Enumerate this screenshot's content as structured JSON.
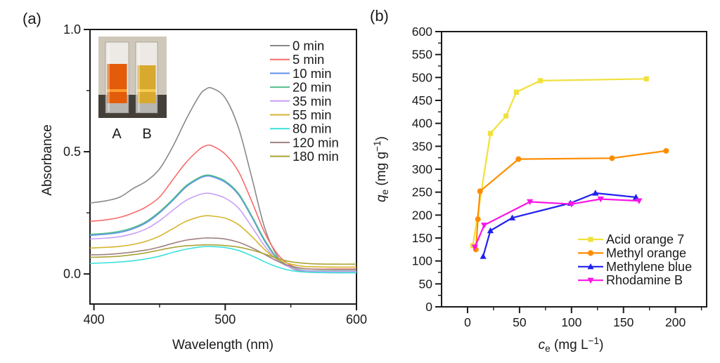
{
  "figure": {
    "background": "#ffffff"
  },
  "chart_data": [
    {
      "id": "a",
      "panel_label": "(a)",
      "type": "line",
      "title": "",
      "xlabel": "Wavelength (nm)",
      "ylabel": "Absorbance",
      "xlim": [
        397,
        600
      ],
      "ylim": [
        -0.123,
        1.0
      ],
      "x_major_ticks": [
        400,
        500,
        600
      ],
      "x_tick_labels": [
        "400",
        "500",
        "600"
      ],
      "x_minor_ticks": [
        450,
        550
      ],
      "y_major_ticks": [
        0,
        0.5,
        1.0
      ],
      "y_tick_labels": [
        "0.0",
        "0.5",
        "1.0"
      ],
      "y_minor_ticks": [
        0.25,
        0.75
      ],
      "grid": false,
      "legend_position": "top-right",
      "wavelengths": [
        397,
        410,
        420,
        430,
        440,
        450,
        460,
        470,
        480,
        485,
        490,
        500,
        510,
        520,
        530,
        540,
        550,
        560,
        570,
        585,
        600
      ],
      "series": [
        {
          "name": "0 min",
          "color": "#898989",
          "values": [
            0.29,
            0.3,
            0.315,
            0.35,
            0.38,
            0.43,
            0.52,
            0.63,
            0.727,
            0.755,
            0.76,
            0.72,
            0.6,
            0.4,
            0.19,
            0.07,
            0.025,
            0.01,
            0.006,
            0.005,
            0.005
          ]
        },
        {
          "name": "5 min",
          "color": "#fa6a6a",
          "values": [
            0.215,
            0.222,
            0.232,
            0.25,
            0.275,
            0.315,
            0.385,
            0.455,
            0.508,
            0.524,
            0.524,
            0.49,
            0.42,
            0.3,
            0.17,
            0.08,
            0.035,
            0.022,
            0.02,
            0.02,
            0.02
          ]
        },
        {
          "name": "10 min",
          "color": "#6090ee",
          "values": [
            0.158,
            0.163,
            0.17,
            0.185,
            0.21,
            0.25,
            0.3,
            0.355,
            0.39,
            0.4,
            0.398,
            0.375,
            0.325,
            0.235,
            0.135,
            0.06,
            0.027,
            0.013,
            0.01,
            0.01,
            0.01
          ]
        },
        {
          "name": "20 min",
          "color": "#52bd8b",
          "values": [
            0.162,
            0.167,
            0.175,
            0.19,
            0.215,
            0.255,
            0.305,
            0.36,
            0.394,
            0.404,
            0.402,
            0.38,
            0.33,
            0.24,
            0.14,
            0.063,
            0.029,
            0.015,
            0.012,
            0.012,
            0.012
          ]
        },
        {
          "name": "35 min",
          "color": "#c9a0f5",
          "values": [
            0.143,
            0.147,
            0.153,
            0.165,
            0.185,
            0.218,
            0.26,
            0.3,
            0.324,
            0.33,
            0.328,
            0.31,
            0.27,
            0.195,
            0.115,
            0.055,
            0.026,
            0.013,
            0.01,
            0.01,
            0.01
          ]
        },
        {
          "name": "55 min",
          "color": "#d6b52e",
          "values": [
            0.106,
            0.109,
            0.113,
            0.121,
            0.134,
            0.155,
            0.185,
            0.215,
            0.233,
            0.238,
            0.237,
            0.228,
            0.202,
            0.155,
            0.1,
            0.06,
            0.04,
            0.031,
            0.029,
            0.028,
            0.028
          ]
        },
        {
          "name": "80 min",
          "color": "#3ce1dd",
          "values": [
            0.043,
            0.046,
            0.049,
            0.054,
            0.062,
            0.073,
            0.088,
            0.101,
            0.11,
            0.112,
            0.112,
            0.108,
            0.096,
            0.075,
            0.05,
            0.028,
            0.014,
            0.008,
            0.006,
            0.005,
            0.005
          ]
        },
        {
          "name": "120 min",
          "color": "#a08080",
          "values": [
            0.078,
            0.08,
            0.084,
            0.09,
            0.098,
            0.11,
            0.125,
            0.138,
            0.145,
            0.147,
            0.147,
            0.143,
            0.13,
            0.108,
            0.08,
            0.052,
            0.032,
            0.022,
            0.019,
            0.018,
            0.018
          ]
        },
        {
          "name": "180 min",
          "color": "#aaa435",
          "values": [
            0.068,
            0.07,
            0.073,
            0.079,
            0.087,
            0.098,
            0.108,
            0.115,
            0.118,
            0.119,
            0.119,
            0.116,
            0.11,
            0.098,
            0.082,
            0.063,
            0.05,
            0.044,
            0.041,
            0.04,
            0.04
          ]
        }
      ],
      "inset": {
        "type": "photo-of-cuvettes",
        "labels": [
          "A",
          "B"
        ],
        "liquid_colors": [
          "#e25c0a",
          "#d8a92e"
        ],
        "highlight_colors": [
          "#ff9d2e",
          "#f3cd55"
        ],
        "background": "#cfc8ba",
        "bench_color": "#443f38"
      }
    },
    {
      "id": "b",
      "panel_label": "(b)",
      "type": "scatter-line",
      "title": "",
      "xlabel_parts": [
        {
          "t": "c",
          "italic": true
        },
        {
          "t": "e",
          "sub": true
        },
        {
          "t": " (mg L"
        },
        {
          "t": "−1",
          "sup": true
        },
        {
          "t": ")"
        }
      ],
      "ylabel_parts": [
        {
          "t": "q",
          "italic": true
        },
        {
          "t": "e",
          "sub": true
        },
        {
          "t": " (mg g",
          "italic_sub_done": true
        },
        {
          "t": "−1",
          "sup": true
        },
        {
          "t": ")"
        }
      ],
      "xlim": [
        -25,
        230
      ],
      "ylim": [
        0,
        600
      ],
      "x_major_ticks": [
        0,
        50,
        100,
        150,
        200
      ],
      "x_tick_labels": [
        "0",
        "50",
        "100",
        "150",
        "200"
      ],
      "x_minor_ticks": [
        25,
        75,
        125,
        175,
        225
      ],
      "y_major_ticks": [
        0,
        50,
        100,
        150,
        200,
        250,
        300,
        350,
        400,
        450,
        500,
        550,
        600
      ],
      "y_tick_labels": [
        "0",
        "50",
        "100",
        "150",
        "200",
        "250",
        "300",
        "350",
        "400",
        "450",
        "500",
        "550",
        "600"
      ],
      "y_minor_ticks": [
        25,
        75,
        125,
        175,
        225,
        275,
        325,
        375,
        425,
        475,
        525,
        575
      ],
      "grid": false,
      "legend_position": "bottom-right",
      "series": [
        {
          "name": "Acid orange 7",
          "color": "#f0e13c",
          "marker": "square",
          "points": [
            [
              5,
              133
            ],
            [
              22,
              378
            ],
            [
              37,
              416
            ],
            [
              47,
              468
            ],
            [
              70,
              493
            ],
            [
              172,
              497
            ]
          ]
        },
        {
          "name": "Methyl orange",
          "color": "#ff8c00",
          "marker": "circle",
          "points": [
            [
              8,
              125
            ],
            [
              10,
              191
            ],
            [
              12,
              252
            ],
            [
              49,
              322
            ],
            [
              139,
              324
            ],
            [
              191,
              340
            ]
          ]
        },
        {
          "name": "Methylene blue",
          "color": "#2020f0",
          "marker": "triangle-up",
          "points": [
            [
              15,
              110
            ],
            [
              22,
              166
            ],
            [
              43,
              194
            ],
            [
              99,
              226
            ],
            [
              123,
              248
            ],
            [
              162,
              239
            ]
          ]
        },
        {
          "name": "Rhodamine B",
          "color": "#fa14e6",
          "marker": "triangle-down",
          "points": [
            [
              7,
              130
            ],
            [
              16,
              178
            ],
            [
              60,
              229
            ],
            [
              100,
              224
            ],
            [
              128,
              235
            ],
            [
              165,
              231
            ]
          ]
        }
      ]
    }
  ]
}
